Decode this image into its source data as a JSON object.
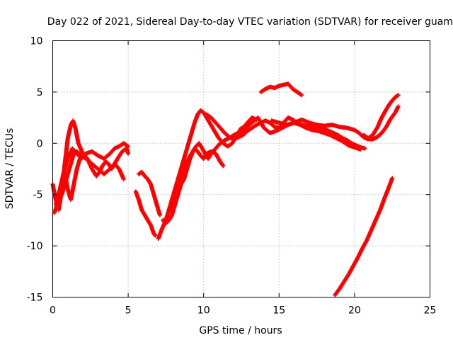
{
  "chart_data": {
    "type": "scatter",
    "title": "Day 022 of 2021, Sidereal Day-to-day VTEC variation (SDTVAR) for receiver guam",
    "xlabel": "GPS time / hours",
    "ylabel": "SDTVAR / TECUs",
    "xlim": [
      0,
      25
    ],
    "ylim": [
      -15,
      10
    ],
    "x_ticks": [
      0,
      5,
      10,
      15,
      20,
      25
    ],
    "y_ticks": [
      -15,
      -10,
      -5,
      0,
      5,
      10
    ],
    "x_tick_labels": [
      "0",
      "5",
      "10",
      "15",
      "20",
      "25"
    ],
    "y_tick_labels": [
      "-15",
      "-10",
      "-5",
      "0",
      "5",
      "10"
    ],
    "grid": true,
    "marker": "+",
    "color": "#ff0000",
    "series": [
      {
        "x": [
          0.0,
          0.2,
          0.4,
          0.6,
          0.8,
          1.0,
          1.2,
          1.35,
          1.5,
          1.7,
          2.0,
          2.3,
          2.6,
          2.9,
          3.1,
          3.3,
          3.5,
          3.7,
          3.9,
          4.1,
          4.3,
          4.6,
          4.9,
          5.0
        ],
        "y": [
          -4.0,
          -5.5,
          -6.5,
          -4.5,
          -2.0,
          0.5,
          1.8,
          2.2,
          1.5,
          0.0,
          -1.0,
          -1.5,
          -2.5,
          -3.2,
          -2.8,
          -2.2,
          -1.8,
          -2.0,
          -2.5,
          -2.0,
          -1.5,
          -0.8,
          -0.5,
          -1.0
        ]
      },
      {
        "x": [
          0.2,
          0.4,
          0.7,
          1.0,
          1.3,
          1.6,
          1.9,
          2.2,
          2.6,
          3.0,
          3.4,
          3.8,
          4.1,
          4.4,
          4.7,
          5.0
        ],
        "y": [
          -6.0,
          -5.0,
          -3.0,
          -1.5,
          -0.5,
          -1.0,
          -1.5,
          -1.0,
          -0.8,
          -1.2,
          -1.5,
          -1.0,
          -0.5,
          -0.3,
          0.0,
          -0.3
        ]
      },
      {
        "x": [
          0.1,
          0.3,
          0.6,
          0.9,
          1.2,
          1.4,
          1.6,
          1.9,
          2.2,
          2.6,
          3.0,
          3.4,
          3.8,
          4.1,
          4.4,
          4.7
        ],
        "y": [
          -6.8,
          -6.0,
          -5.0,
          -3.5,
          -2.0,
          -1.0,
          -0.8,
          -1.2,
          -1.5,
          -2.0,
          -2.5,
          -3.0,
          -2.5,
          -2.0,
          -2.5,
          -3.5
        ]
      },
      {
        "x": [
          0.8,
          1.0,
          1.2,
          1.4,
          1.6,
          1.8
        ],
        "y": [
          -3.0,
          -4.5,
          -5.5,
          -4.0,
          -2.5,
          -1.5
        ]
      },
      {
        "x": [
          5.7,
          5.9,
          6.1,
          6.3,
          6.5,
          6.7,
          6.9,
          7.1
        ],
        "y": [
          -3.0,
          -2.8,
          -3.2,
          -3.5,
          -4.0,
          -5.0,
          -6.0,
          -7.0
        ]
      },
      {
        "x": [
          5.5,
          5.7,
          5.9,
          6.1,
          6.3,
          6.5,
          6.7,
          6.8
        ],
        "y": [
          -4.7,
          -5.5,
          -6.5,
          -7.0,
          -7.5,
          -8.0,
          -8.8,
          -9.0
        ]
      },
      {
        "x": [
          7.0,
          7.2,
          7.4,
          7.6,
          7.8,
          8.0,
          8.2,
          8.4,
          8.6,
          8.8,
          9.0,
          9.2,
          9.4,
          9.6,
          9.8,
          10.0,
          10.2,
          10.4,
          10.6,
          10.8,
          11.0,
          11.3,
          11.6,
          11.9,
          12.2,
          12.5
        ],
        "y": [
          -9.3,
          -8.5,
          -7.8,
          -7.0,
          -6.0,
          -5.0,
          -4.0,
          -3.0,
          -2.0,
          -1.0,
          0.0,
          1.0,
          2.0,
          2.8,
          3.2,
          3.0,
          2.5,
          2.0,
          1.5,
          1.0,
          0.5,
          0.0,
          -0.3,
          0.0,
          0.8,
          1.5
        ]
      },
      {
        "x": [
          7.3,
          7.5,
          7.7,
          7.9,
          8.1,
          8.3,
          8.5,
          8.7,
          8.9,
          9.1,
          9.3,
          9.5,
          9.7,
          9.9,
          10.1,
          10.3,
          10.5,
          10.8,
          11.1,
          11.4,
          11.7,
          12.0,
          12.3,
          12.6,
          12.9,
          13.2,
          13.5
        ],
        "y": [
          -7.5,
          -7.8,
          -7.5,
          -7.0,
          -6.0,
          -5.0,
          -4.0,
          -3.5,
          -2.5,
          -1.5,
          -0.8,
          -0.3,
          0.0,
          -0.5,
          -1.0,
          -1.5,
          -1.0,
          -0.5,
          0.0,
          0.3,
          0.5,
          0.8,
          1.0,
          1.5,
          2.0,
          2.5,
          2.3
        ]
      },
      {
        "x": [
          7.8,
          8.0,
          8.2,
          8.4,
          8.6,
          8.8,
          9.0,
          9.2,
          9.4,
          9.6,
          9.8,
          10.0,
          10.2,
          10.5,
          10.8,
          11.1,
          11.3
        ],
        "y": [
          -6.5,
          -5.5,
          -4.5,
          -3.8,
          -3.0,
          -2.2,
          -1.5,
          -1.0,
          -0.5,
          -0.8,
          -1.2,
          -1.5,
          -1.0,
          -0.8,
          -1.0,
          -1.8,
          -2.2
        ]
      },
      {
        "x": [
          10.2,
          10.5,
          10.8,
          11.1,
          11.4,
          11.7,
          12.0,
          12.3,
          12.6,
          12.9,
          13.2,
          13.5,
          13.8,
          14.1,
          14.4,
          14.7,
          15.0,
          15.3,
          15.6,
          15.9,
          16.2,
          16.5,
          16.8,
          17.1,
          17.4,
          17.7,
          18.0,
          18.3,
          18.6,
          18.9,
          19.2,
          19.5,
          19.8,
          20.1,
          20.4,
          20.7
        ],
        "y": [
          2.8,
          2.5,
          2.0,
          1.5,
          1.0,
          0.6,
          0.4,
          0.6,
          0.8,
          1.2,
          1.5,
          1.8,
          2.0,
          2.2,
          2.0,
          1.6,
          1.5,
          2.0,
          2.5,
          2.3,
          2.0,
          1.8,
          1.7,
          1.6,
          1.5,
          1.5,
          1.4,
          1.2,
          1.0,
          0.8,
          0.5,
          0.3,
          0.0,
          -0.2,
          -0.4,
          -0.5
        ]
      },
      {
        "x": [
          12.0,
          12.4,
          12.8,
          13.2,
          13.6,
          14.0,
          14.4,
          14.8,
          15.2,
          15.6,
          16.0,
          16.4,
          16.8,
          17.2,
          17.6,
          18.0,
          18.4,
          18.8,
          19.2,
          19.6,
          20.0,
          20.4
        ],
        "y": [
          0.5,
          1.0,
          1.5,
          2.0,
          2.5,
          1.5,
          1.0,
          1.2,
          1.5,
          1.8,
          2.0,
          1.8,
          1.5,
          1.3,
          1.2,
          1.0,
          0.8,
          0.5,
          0.2,
          -0.2,
          -0.4,
          -0.6
        ]
      },
      {
        "x": [
          14.5,
          15.0,
          15.5,
          16.0,
          16.5,
          17.0,
          17.5,
          18.0,
          18.5,
          19.0,
          19.5,
          20.0,
          20.3,
          20.6,
          20.9,
          21.2,
          21.5,
          21.8,
          22.1,
          22.4,
          22.7,
          22.9
        ],
        "y": [
          2.2,
          2.0,
          1.8,
          2.0,
          2.3,
          2.0,
          1.8,
          1.7,
          1.8,
          1.6,
          1.5,
          1.3,
          1.0,
          0.6,
          0.4,
          0.4,
          0.6,
          1.0,
          1.6,
          2.4,
          3.0,
          3.6
        ]
      },
      {
        "x": [
          20.6,
          20.9,
          21.2,
          21.5,
          21.8,
          22.1,
          22.4,
          22.7,
          22.9
        ],
        "y": [
          0.8,
          0.5,
          0.8,
          1.5,
          2.5,
          3.3,
          4.0,
          4.5,
          4.7
        ]
      },
      {
        "x": [
          13.8,
          14.1,
          14.4,
          14.7,
          15.0,
          15.3,
          15.6,
          15.9,
          16.2,
          16.5
        ],
        "y": [
          5.0,
          5.3,
          5.5,
          5.4,
          5.6,
          5.7,
          5.8,
          5.3,
          5.0,
          4.7
        ]
      },
      {
        "x": [
          18.7,
          19.0,
          19.3,
          19.6,
          19.9,
          20.2,
          20.5,
          20.8,
          21.1,
          21.4,
          21.7,
          22.0,
          22.3,
          22.5
        ],
        "y": [
          -14.8,
          -14.2,
          -13.5,
          -12.8,
          -12.0,
          -11.2,
          -10.3,
          -9.5,
          -8.5,
          -7.5,
          -6.5,
          -5.3,
          -4.2,
          -3.4
        ]
      }
    ]
  }
}
